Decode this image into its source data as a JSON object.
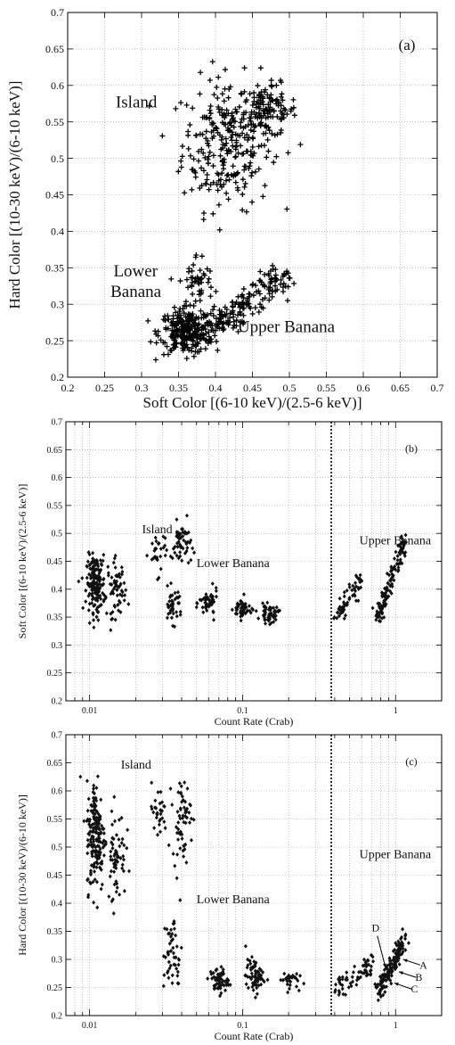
{
  "figure": {
    "title": ""
  },
  "chart_data": [
    {
      "panel_label": "(a)",
      "type": "scatter",
      "xlabel": "Soft Color [(6-10 keV)/(2.5-6 keV)]",
      "ylabel": "Hard Color [(10-30 keV)/(6-10 keV)]",
      "xlim": [
        0.2,
        0.7
      ],
      "ylim": [
        0.2,
        0.7
      ],
      "xscale": "linear",
      "xticks": [
        "0.2",
        "0.25",
        "0.3",
        "0.35",
        "0.4",
        "0.45",
        "0.5",
        "0.55",
        "0.6",
        "0.65",
        "0.7"
      ],
      "yticks": [
        "0.2",
        "0.25",
        "0.3",
        "0.35",
        "0.4",
        "0.45",
        "0.5",
        "0.55",
        "0.6",
        "0.65",
        "0.7"
      ],
      "marker": "+",
      "annotations": [
        {
          "text": "Island",
          "x": 0.265,
          "y": 0.57
        },
        {
          "text": "Lower",
          "x": 0.262,
          "y": 0.338
        },
        {
          "text": "Banana",
          "x": 0.258,
          "y": 0.31
        },
        {
          "text": "Upper Banana",
          "x": 0.43,
          "y": 0.262
        }
      ],
      "clusters": [
        {
          "region": "Island",
          "x_center": 0.415,
          "x_spread": 0.03,
          "y_center": 0.52,
          "y_spread": 0.045,
          "points": 260
        },
        {
          "region": "Island",
          "x_center": 0.47,
          "x_spread": 0.02,
          "y_center": 0.565,
          "y_spread": 0.018,
          "points": 120
        },
        {
          "region": "Lower Banana",
          "x_center": 0.36,
          "x_spread": 0.018,
          "y_center": 0.262,
          "y_spread": 0.015,
          "points": 260
        },
        {
          "region": "Lower Banana",
          "x_center": 0.375,
          "x_spread": 0.012,
          "y_center": 0.33,
          "y_spread": 0.02,
          "points": 50
        },
        {
          "region": "Upper Banana",
          "x_from": 0.38,
          "x_to": 0.49,
          "y_from": 0.26,
          "y_to": 0.34,
          "spread": 0.01,
          "points": 180
        }
      ]
    },
    {
      "panel_label": "(b)",
      "type": "scatter",
      "xlabel": "Count Rate (Crab)",
      "ylabel": "Soft Color [(6-10 keV)/(2.5-6 keV)]",
      "xscale": "log",
      "xlim": [
        0.007,
        2.0
      ],
      "ylim": [
        0.2,
        0.7
      ],
      "xticks": [
        "0.01",
        "0.1",
        "1"
      ],
      "yticks": [
        "0.2",
        "0.25",
        "0.3",
        "0.35",
        "0.4",
        "0.45",
        "0.5",
        "0.55",
        "0.6",
        "0.65",
        "0.7"
      ],
      "divider_x": 0.38,
      "marker": "diamond",
      "annotations": [
        {
          "text": "Island",
          "x": 0.022,
          "y": 0.5
        },
        {
          "text": "Lower Banana",
          "x": 0.05,
          "y": 0.44
        },
        {
          "text": "Upper Banana",
          "x": 0.58,
          "y": 0.48
        }
      ],
      "clusters": [
        {
          "region": "Island",
          "x_center": 0.011,
          "y_center": 0.41,
          "y_spread": 0.025,
          "points": 170
        },
        {
          "region": "Island",
          "x_center": 0.015,
          "y_center": 0.4,
          "y_spread": 0.025,
          "points": 60
        },
        {
          "region": "Island",
          "x_center": 0.028,
          "y_center": 0.465,
          "y_spread": 0.02,
          "points": 30
        },
        {
          "region": "Island",
          "x_center": 0.04,
          "y_center": 0.48,
          "y_spread": 0.02,
          "points": 50
        },
        {
          "region": "Lower Banana",
          "x_center": 0.035,
          "y_center": 0.37,
          "y_spread": 0.015,
          "points": 40
        },
        {
          "region": "Lower Banana",
          "x_center": 0.06,
          "y_center": 0.375,
          "y_spread": 0.012,
          "points": 50
        },
        {
          "region": "Lower Banana",
          "x_center": 0.1,
          "y_center": 0.365,
          "y_spread": 0.01,
          "points": 50
        },
        {
          "region": "Lower Banana",
          "x_center": 0.15,
          "y_center": 0.355,
          "y_spread": 0.008,
          "points": 50
        },
        {
          "region": "Upper Banana",
          "x_from": 0.4,
          "x_to": 0.6,
          "y_from": 0.35,
          "y_to": 0.42,
          "points": 60
        },
        {
          "region": "Upper Banana",
          "x_from": 0.75,
          "x_to": 1.15,
          "y_from": 0.35,
          "y_to": 0.49,
          "points": 140
        }
      ]
    },
    {
      "panel_label": "(c)",
      "type": "scatter",
      "xlabel": "Count Rate (Crab)",
      "ylabel": "Hard Color [(10-30 keV)/(6-10 keV)]",
      "xscale": "log",
      "xlim": [
        0.007,
        2.0
      ],
      "ylim": [
        0.2,
        0.7
      ],
      "xticks": [
        "0.01",
        "0.1",
        "1"
      ],
      "yticks": [
        "0.2",
        "0.25",
        "0.3",
        "0.35",
        "0.4",
        "0.45",
        "0.5",
        "0.55",
        "0.6",
        "0.65",
        "0.7"
      ],
      "divider_x": 0.38,
      "marker": "diamond",
      "annotations": [
        {
          "text": "Island",
          "x": 0.016,
          "y": 0.64
        },
        {
          "text": "Lower Banana",
          "x": 0.05,
          "y": 0.4
        },
        {
          "text": "Upper Banana",
          "x": 0.58,
          "y": 0.48
        },
        {
          "text": "D",
          "x": 0.74,
          "y": 0.35
        },
        {
          "text": "A",
          "x": 1.52,
          "y": 0.283
        },
        {
          "text": "B",
          "x": 1.42,
          "y": 0.262
        },
        {
          "text": "C",
          "x": 1.33,
          "y": 0.241
        }
      ],
      "clusters": [
        {
          "region": "Island",
          "x_center": 0.011,
          "y_center": 0.52,
          "y_spread": 0.05,
          "points": 180
        },
        {
          "region": "Island",
          "x_center": 0.015,
          "y_center": 0.49,
          "y_spread": 0.04,
          "points": 60
        },
        {
          "region": "Island",
          "x_center": 0.028,
          "y_center": 0.56,
          "y_spread": 0.025,
          "points": 30
        },
        {
          "region": "Island",
          "x_center": 0.04,
          "y_center": 0.55,
          "y_spread": 0.035,
          "points": 60
        },
        {
          "region": "Lower Banana",
          "x_center": 0.035,
          "y_center": 0.31,
          "y_spread": 0.035,
          "points": 50
        },
        {
          "region": "Lower Banana",
          "x_center": 0.07,
          "y_center": 0.262,
          "y_spread": 0.012,
          "points": 60
        },
        {
          "region": "Lower Banana",
          "x_center": 0.12,
          "y_center": 0.27,
          "y_spread": 0.015,
          "points": 70
        },
        {
          "region": "Lower Banana",
          "x_center": 0.2,
          "y_center": 0.265,
          "y_spread": 0.008,
          "points": 30
        },
        {
          "region": "Upper Banana",
          "x_from": 0.4,
          "x_to": 0.7,
          "y_from": 0.25,
          "y_to": 0.29,
          "points": 60
        },
        {
          "region": "Upper Banana",
          "x_from": 0.75,
          "x_to": 1.15,
          "y_from": 0.24,
          "y_to": 0.34,
          "points": 140
        }
      ]
    }
  ]
}
